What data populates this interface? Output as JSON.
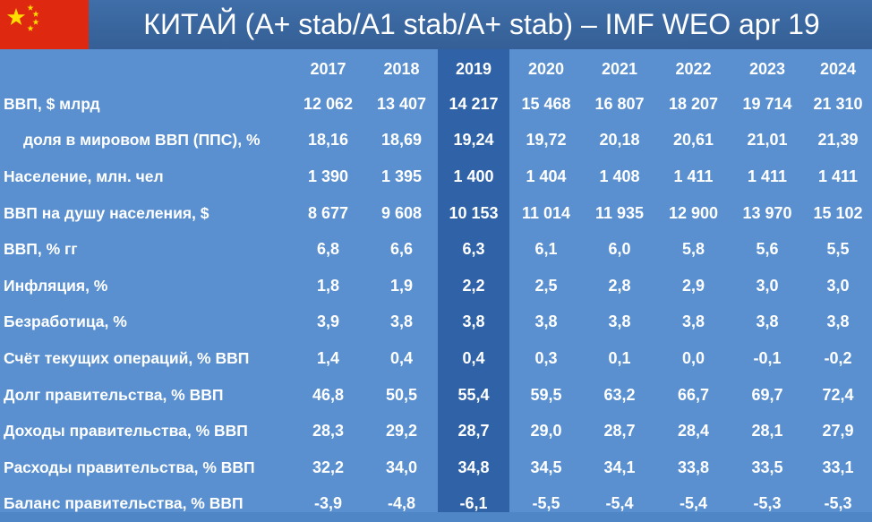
{
  "title": "КИТАЙ (A+ stab/A1 stab/A+ stab) – IMF WEO apr 19",
  "colors": {
    "flag": "#de2910",
    "flag_star": "#ffde00",
    "background": "#5a90cf",
    "highlight_column": "#2f62a6",
    "header_bar": "#3a68a0"
  },
  "table": {
    "highlight_year": "2019",
    "years": [
      "2017",
      "2018",
      "2019",
      "2020",
      "2021",
      "2022",
      "2023",
      "2024"
    ],
    "rows": [
      {
        "label": "ВВП, $ млрд",
        "values": [
          "12 062",
          "13 407",
          "14 217",
          "15 468",
          "16 807",
          "18 207",
          "19 714",
          "21 310"
        ]
      },
      {
        "label": "доля в мировом ВВП (ППС), %",
        "values": [
          "18,16",
          "18,69",
          "19,24",
          "19,72",
          "20,18",
          "20,61",
          "21,01",
          "21,39"
        ]
      },
      {
        "label": "Население, млн. чел",
        "values": [
          "1 390",
          "1 395",
          "1 400",
          "1 404",
          "1 408",
          "1 411",
          "1 411",
          "1 411"
        ]
      },
      {
        "label": "ВВП на душу населения, $",
        "values": [
          "8 677",
          "9 608",
          "10 153",
          "11 014",
          "11 935",
          "12 900",
          "13 970",
          "15 102"
        ]
      },
      {
        "label": "ВВП, % гг",
        "values": [
          "6,8",
          "6,6",
          "6,3",
          "6,1",
          "6,0",
          "5,8",
          "5,6",
          "5,5"
        ]
      },
      {
        "label": "Инфляция, %",
        "values": [
          "1,8",
          "1,9",
          "2,2",
          "2,5",
          "2,8",
          "2,9",
          "3,0",
          "3,0"
        ]
      },
      {
        "label": "Безработица, %",
        "values": [
          "3,9",
          "3,8",
          "3,8",
          "3,8",
          "3,8",
          "3,8",
          "3,8",
          "3,8"
        ]
      },
      {
        "label": "Счёт текущих операций, % ВВП",
        "values": [
          "1,4",
          "0,4",
          "0,4",
          "0,3",
          "0,1",
          "0,0",
          "-0,1",
          "-0,2"
        ]
      },
      {
        "label": "Долг правительства, % ВВП",
        "values": [
          "46,8",
          "50,5",
          "55,4",
          "59,5",
          "63,2",
          "66,7",
          "69,7",
          "72,4"
        ]
      },
      {
        "label": "Доходы правительства, % ВВП",
        "values": [
          "28,3",
          "29,2",
          "28,7",
          "29,0",
          "28,7",
          "28,4",
          "28,1",
          "27,9"
        ]
      },
      {
        "label": "Расходы правительства, % ВВП",
        "values": [
          "32,2",
          "34,0",
          "34,8",
          "34,5",
          "34,1",
          "33,8",
          "33,5",
          "33,1"
        ]
      },
      {
        "label": "Баланс правительства, % ВВП",
        "values": [
          "-3,9",
          "-4,8",
          "-6,1",
          "-5,5",
          "-5,4",
          "-5,4",
          "-5,3",
          "-5,3"
        ]
      }
    ]
  }
}
